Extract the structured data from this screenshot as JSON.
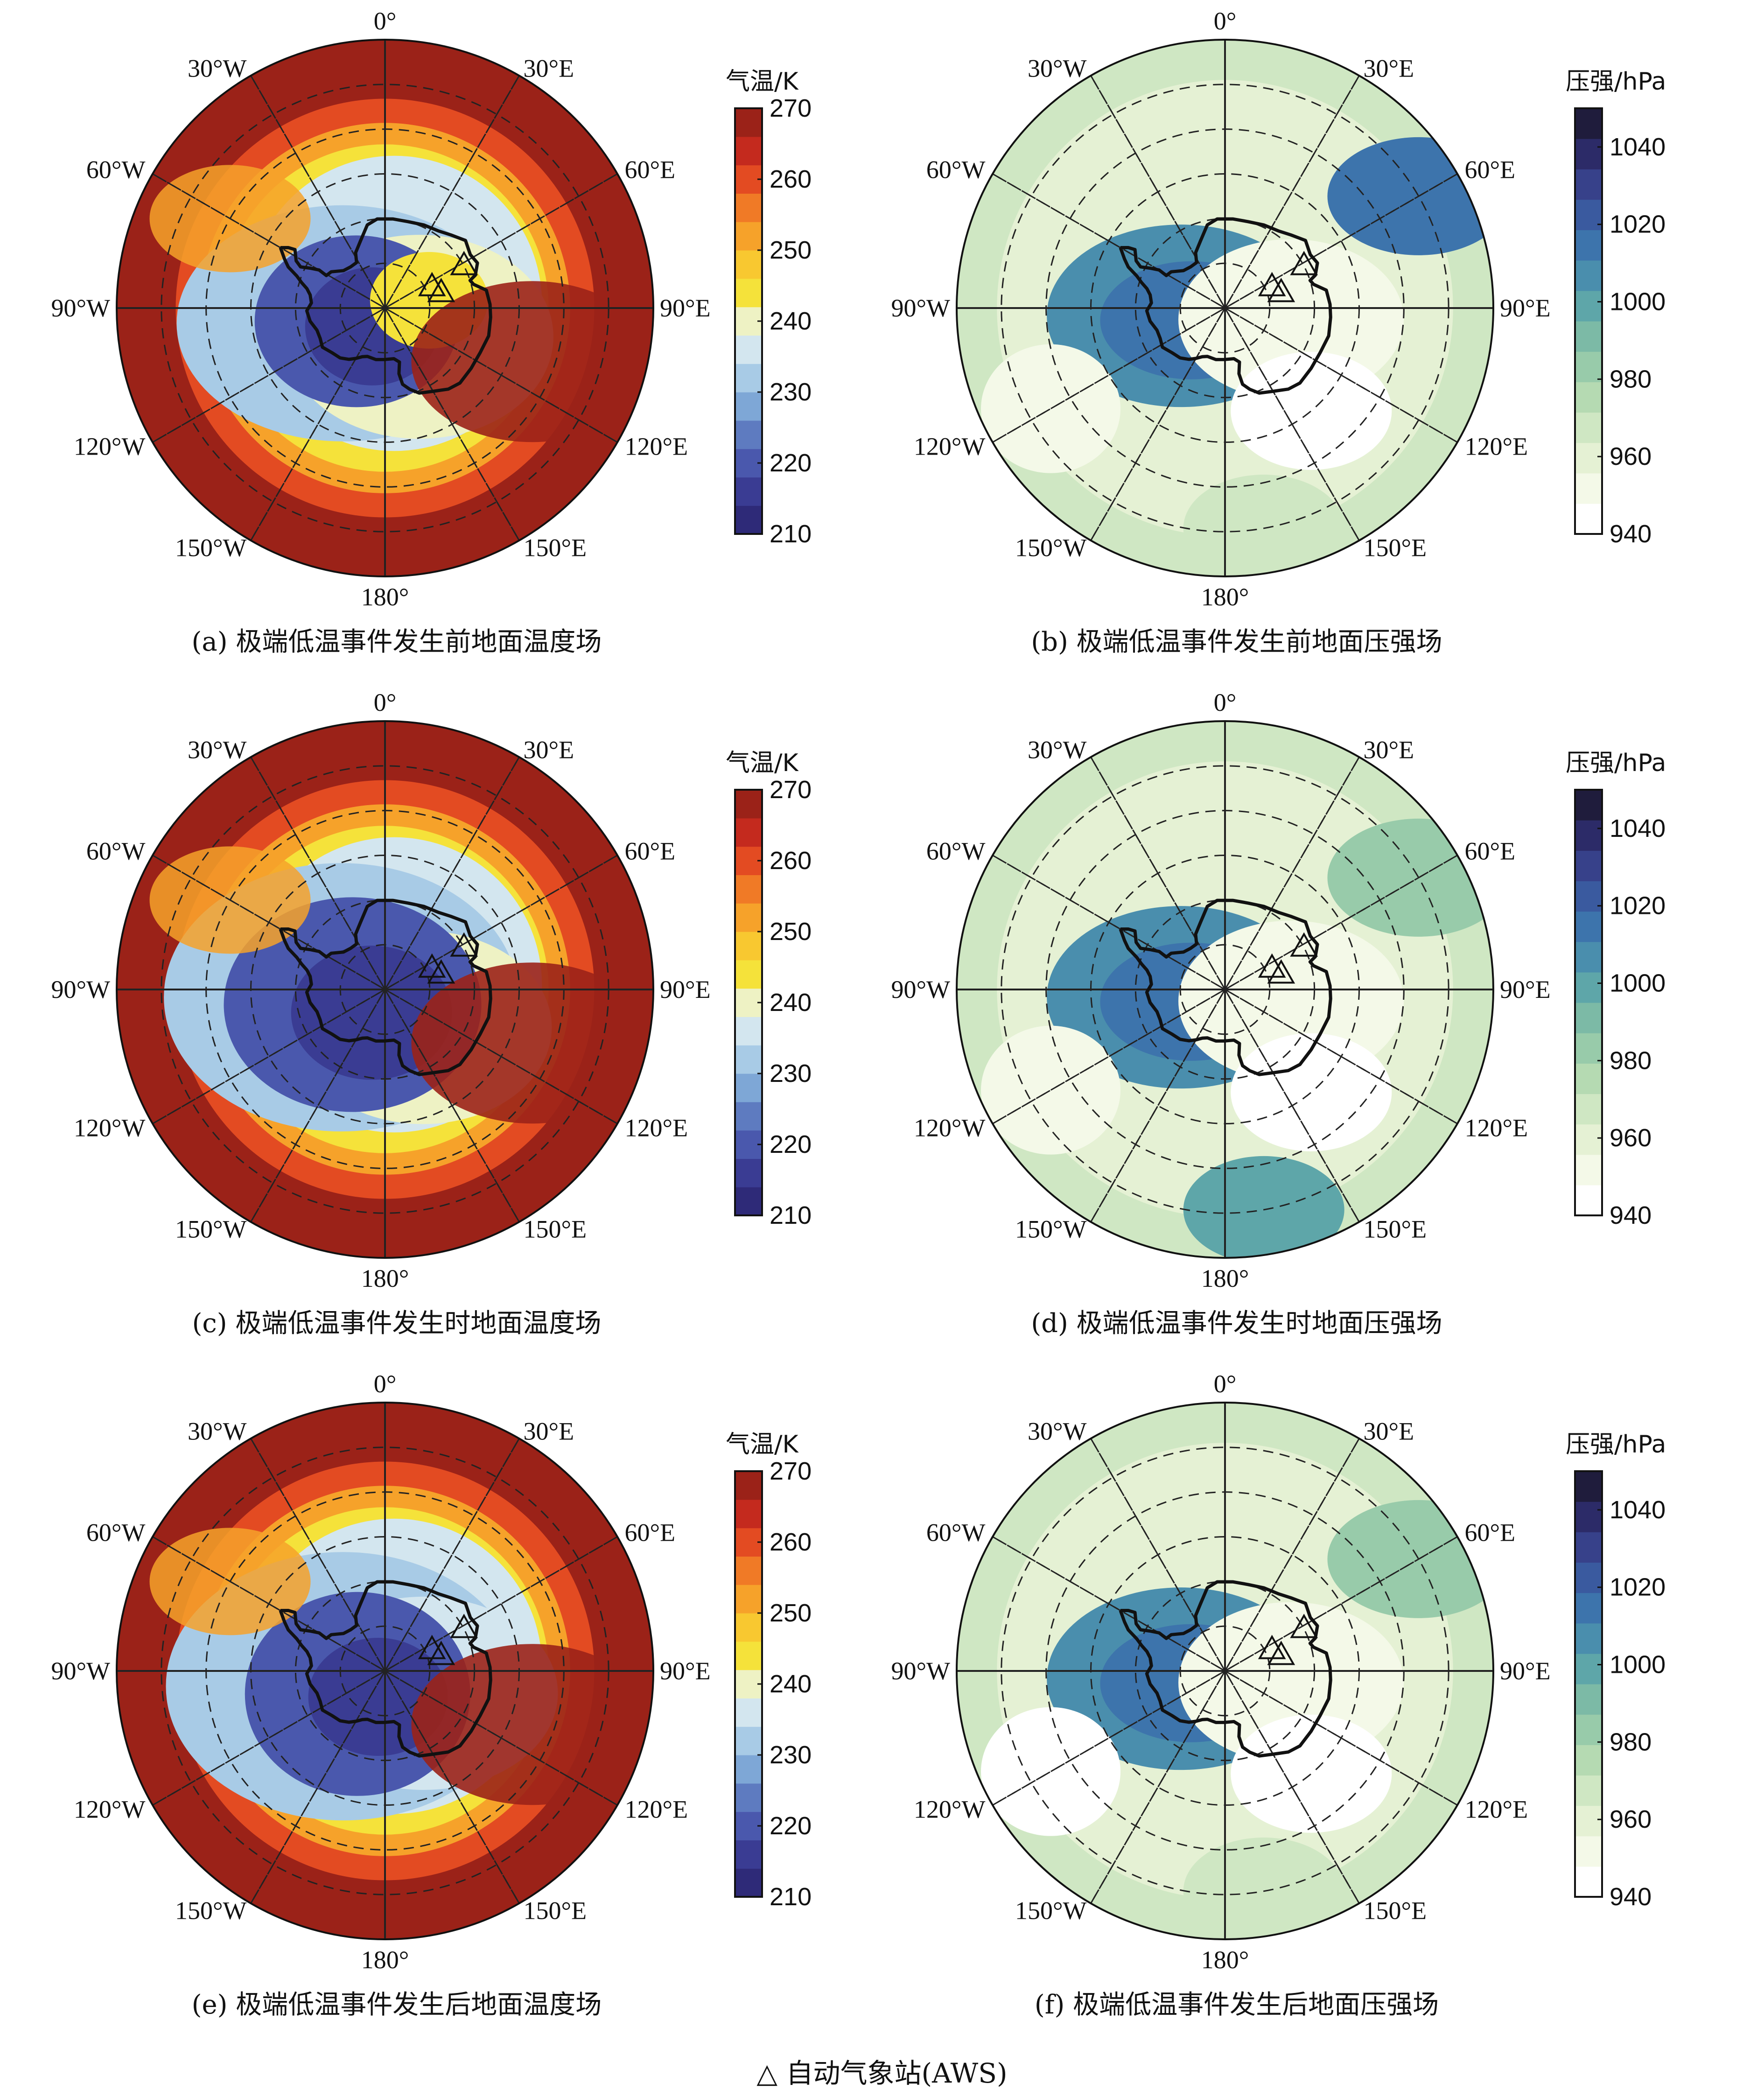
{
  "footnote": "△ 自动气象站(AWS)",
  "longitude_labels": {
    "lon_0": "0°",
    "lon_30e": "30°E",
    "lon_60e": "60°E",
    "lon_90e": "90°E",
    "lon_120e": "120°E",
    "lon_150e": "150°E",
    "lon_180": "180°",
    "lon_150w": "150°W",
    "lon_120w": "120°W",
    "lon_90w": "90°W",
    "lon_60w": "60°W",
    "lon_30w": "30°W"
  },
  "colorbars": {
    "temperature": {
      "title": "气温/K",
      "ticks": [
        "270",
        "260",
        "250",
        "240",
        "230",
        "220",
        "210"
      ],
      "range": [
        210,
        270
      ],
      "colors": [
        "#2e2a78",
        "#3a3c93",
        "#4a58ad",
        "#5e7bc0",
        "#7ea7d6",
        "#a8cbe6",
        "#d3e6ef",
        "#eef2c4",
        "#f5e23a",
        "#f8c830",
        "#f6a22a",
        "#f07a26",
        "#e34b22",
        "#c42a1e",
        "#9b2218"
      ]
    },
    "pressure": {
      "title": "压强/hPa",
      "ticks": [
        "1040",
        "1020",
        "1000",
        "980",
        "960",
        "940"
      ],
      "range": [
        940,
        1050
      ],
      "colors": [
        "#ffffff",
        "#f4f9e8",
        "#e5f1d4",
        "#cfe7c3",
        "#b5dab2",
        "#98cbaa",
        "#7cbaa6",
        "#5ea6a9",
        "#4a8ead",
        "#3d74ac",
        "#3a5a9f",
        "#37418a",
        "#2c2b68",
        "#1f1c3c"
      ]
    }
  },
  "panels": [
    {
      "id": "a",
      "variable": "temperature",
      "caption": "(a) 极端低温事件发生前地面温度场"
    },
    {
      "id": "b",
      "variable": "pressure",
      "caption": "(b) 极端低温事件发生前地面压强场"
    },
    {
      "id": "c",
      "variable": "temperature",
      "caption": "(c) 极端低温事件发生时地面温度场"
    },
    {
      "id": "d",
      "variable": "pressure",
      "caption": "(d) 极端低温事件发生时地面压强场"
    },
    {
      "id": "e",
      "variable": "temperature",
      "caption": "(e) 极端低温事件发生后地面温度场"
    },
    {
      "id": "f",
      "variable": "pressure",
      "caption": "(f) 极端低温事件发生后地面压强场"
    }
  ],
  "aws_stations": [
    {
      "lon": 66,
      "lat": -78.5
    },
    {
      "lon": 75,
      "lat": -77
    },
    {
      "lon": 62,
      "lat": -70
    }
  ]
}
